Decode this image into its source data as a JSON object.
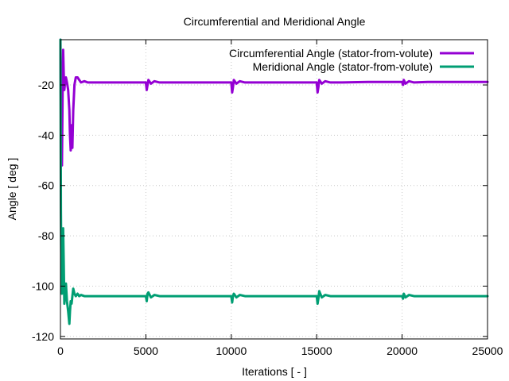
{
  "chart_data": {
    "type": "line",
    "title": "Circumferential and Meridional Angle",
    "xlabel": "Iterations [ - ]",
    "ylabel": "Angle [ deg ]",
    "xlim": [
      0,
      25000
    ],
    "ylim": [
      -121,
      -2
    ],
    "xticks": [
      0,
      5000,
      10000,
      15000,
      20000,
      25000
    ],
    "xtick_labels": [
      "0",
      "5000",
      "10000",
      "15000",
      "20000",
      "25000"
    ],
    "yticks": [
      -120,
      -100,
      -80,
      -60,
      -40,
      -20
    ],
    "ytick_labels": [
      "-120",
      "-100",
      "-80",
      "-60",
      "-40",
      "-20"
    ],
    "grid": true,
    "legend_position": "top-right",
    "series": [
      {
        "name": "Circumferential Angle (stator-from-volute)",
        "color": "#9400d3",
        "x": [
          0,
          30,
          60,
          90,
          130,
          160,
          190,
          230,
          270,
          320,
          380,
          450,
          520,
          560,
          600,
          650,
          700,
          750,
          820,
          900,
          1000,
          1100,
          1200,
          1400,
          1600,
          1800,
          2000,
          2500,
          3000,
          4000,
          5000,
          5050,
          5100,
          5150,
          5300,
          5500,
          5800,
          6500,
          8000,
          10000,
          10050,
          10100,
          10150,
          10300,
          10500,
          10800,
          11500,
          13000,
          15000,
          15050,
          15100,
          15150,
          15300,
          15500,
          15800,
          16500,
          18000,
          20000,
          20050,
          20100,
          20200,
          20400,
          20700,
          21500,
          23000,
          25000
        ],
        "y": [
          -2,
          -30,
          -50,
          -52,
          -20,
          -6,
          -15,
          -22,
          -19,
          -17,
          -19,
          -22,
          -30,
          -40,
          -46,
          -36,
          -45,
          -30,
          -20,
          -17,
          -17,
          -18,
          -19,
          -18.5,
          -19,
          -19,
          -19,
          -19,
          -19,
          -19,
          -19,
          -22,
          -20,
          -18,
          -19.5,
          -18.5,
          -19,
          -19,
          -19,
          -19,
          -23,
          -21,
          -18,
          -19.5,
          -18.5,
          -19,
          -19,
          -19,
          -19,
          -23,
          -21,
          -18,
          -19.5,
          -18.5,
          -19,
          -19,
          -18.8,
          -18.8,
          -20,
          -18,
          -19.5,
          -18.5,
          -19,
          -18.8,
          -18.8,
          -18.8
        ]
      },
      {
        "name": "Meridional Angle (stator-from-volute)",
        "color": "#009e73",
        "x": [
          0,
          30,
          60,
          90,
          130,
          160,
          190,
          230,
          270,
          320,
          380,
          450,
          520,
          560,
          600,
          650,
          700,
          750,
          820,
          900,
          1000,
          1100,
          1200,
          1400,
          1600,
          1800,
          2000,
          2500,
          3000,
          4000,
          5000,
          5050,
          5100,
          5150,
          5300,
          5500,
          5800,
          6500,
          8000,
          10000,
          10050,
          10100,
          10150,
          10300,
          10500,
          10800,
          11500,
          13000,
          15000,
          15050,
          15100,
          15150,
          15300,
          15500,
          15800,
          16500,
          18000,
          20000,
          20050,
          20100,
          20200,
          20400,
          20700,
          21500,
          23000,
          25000
        ],
        "y": [
          -2,
          -70,
          -100,
          -103,
          -88,
          -77,
          -90,
          -107,
          -103,
          -99,
          -106,
          -110,
          -115,
          -110,
          -106,
          -107,
          -104,
          -101,
          -103,
          -104,
          -103,
          -104,
          -103.5,
          -104,
          -104,
          -104,
          -104,
          -104,
          -104,
          -104,
          -104,
          -106,
          -103,
          -102.5,
          -104.5,
          -103.5,
          -104,
          -104,
          -104,
          -104,
          -106.5,
          -104,
          -103,
          -104.5,
          -103.5,
          -104,
          -104,
          -104,
          -104,
          -107,
          -105,
          -102,
          -104.5,
          -103.5,
          -104,
          -104,
          -104,
          -104,
          -105,
          -103,
          -104.5,
          -103.5,
          -104,
          -104,
          -104,
          -104
        ]
      }
    ]
  }
}
